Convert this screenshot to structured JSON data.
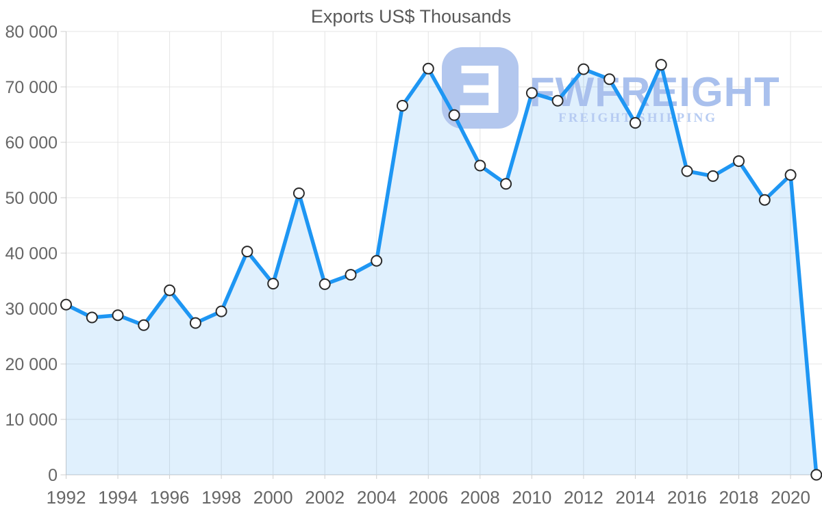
{
  "title": "Exports US$ Thousands",
  "watermark": {
    "logo_glyph": "Ǝ",
    "brand": "FWFREIGHT",
    "tagline": "FREIGHT SHIPPING"
  },
  "colors": {
    "line": "#1e96f3",
    "area_fill": "rgba(33,150,243,0.14)",
    "marker_fill": "#ffffff",
    "marker_stroke": "#2b2b2b",
    "grid": "#e4e4e4",
    "axis": "#c9c9c9",
    "tick": "#cfcfcf",
    "label": "#666666",
    "title": "#595959",
    "watermark_logo": "#b3c7ee",
    "watermark_glyph": "#ffffff",
    "watermark_brand": "#a9c0ed",
    "watermark_tagline": "#b6cbf2"
  },
  "chart_data": {
    "type": "area",
    "title": "Exports US$ Thousands",
    "x": [
      1992,
      1993,
      1994,
      1995,
      1996,
      1997,
      1998,
      1999,
      2000,
      2001,
      2002,
      2003,
      2004,
      2005,
      2006,
      2007,
      2008,
      2009,
      2010,
      2011,
      2012,
      2013,
      2014,
      2015,
      2016,
      2017,
      2018,
      2019,
      2020,
      2021
    ],
    "values": [
      30700,
      28400,
      28800,
      27000,
      33300,
      27400,
      29500,
      40300,
      34500,
      50800,
      34400,
      36100,
      38600,
      66600,
      73300,
      64900,
      55800,
      52500,
      68900,
      67500,
      73200,
      71400,
      63500,
      74000,
      54800,
      53900,
      56600,
      49600,
      54100,
      0
    ],
    "ylim": [
      0,
      80000
    ],
    "ytick_values": [
      0,
      10000,
      20000,
      30000,
      40000,
      50000,
      60000,
      70000,
      80000
    ],
    "ytick_labels": [
      "0",
      "10 000",
      "20 000",
      "30 000",
      "40 000",
      "50 000",
      "60 000",
      "70 000",
      "80 000"
    ],
    "xtick_years": [
      1992,
      1994,
      1996,
      1998,
      2000,
      2002,
      2004,
      2006,
      2008,
      2010,
      2012,
      2014,
      2016,
      2018,
      2020
    ],
    "xlabel": "",
    "ylabel": "",
    "grid": true,
    "legend": false,
    "marker": "circle"
  }
}
